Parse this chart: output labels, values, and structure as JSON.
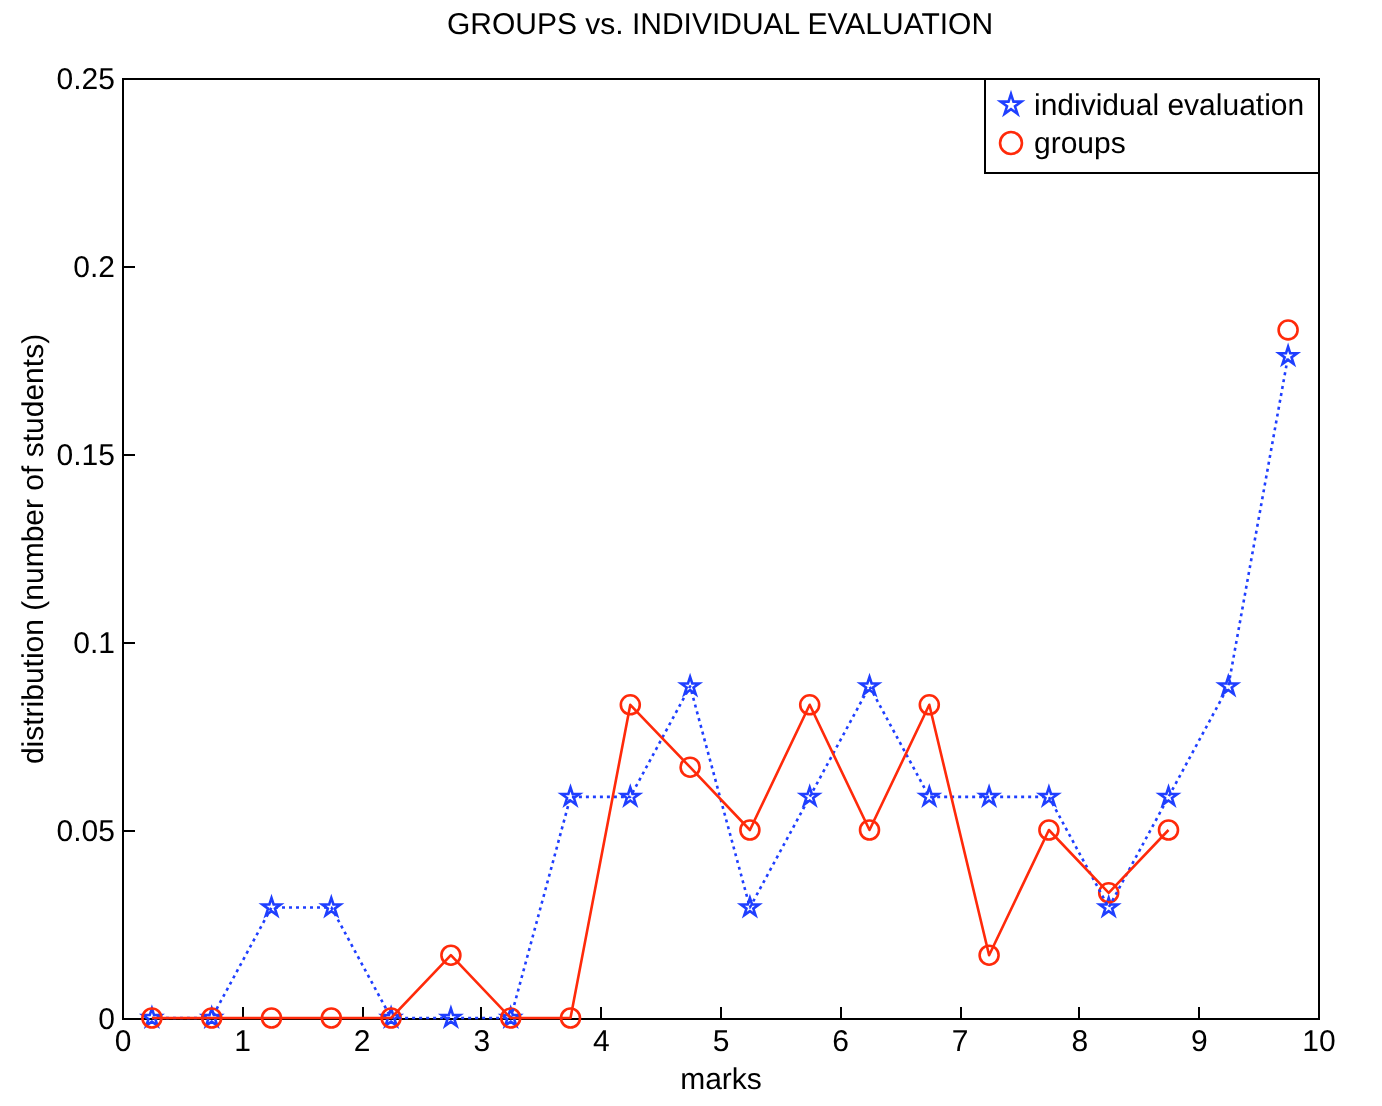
{
  "chart_data": {
    "type": "line",
    "title": "GROUPS vs. INDIVIDUAL EVALUATION",
    "xlabel": "marks",
    "ylabel": "distribution (number of students)",
    "x": [
      0.25,
      0.75,
      1.25,
      1.75,
      2.25,
      2.75,
      3.25,
      3.75,
      4.25,
      4.75,
      5.25,
      5.75,
      6.25,
      6.75,
      7.25,
      7.75,
      8.25,
      8.75,
      9.25,
      9.75
    ],
    "series": [
      {
        "name": "individual evaluation",
        "color": "#1f3fff",
        "marker": "star",
        "line_style": "dotted",
        "values": [
          0,
          0,
          0.0294,
          0.0294,
          0,
          0,
          0,
          0.0588,
          0.0588,
          0.0882,
          0.0294,
          0.0588,
          0.0882,
          0.0588,
          0.0588,
          0.0588,
          0.0294,
          0.0588,
          0.0882,
          0.176
        ]
      },
      {
        "name": "groups",
        "color": "#ff2a0a",
        "marker": "circle",
        "line_style": "solid",
        "values": [
          0,
          0,
          0,
          0,
          0,
          0.0167,
          0,
          0,
          0.0833,
          0.0667,
          0.05,
          0.0833,
          0.05,
          0.0833,
          0.0167,
          0.05,
          0.0333,
          0.05,
          null,
          0.183
        ]
      }
    ],
    "xlim": [
      0,
      10
    ],
    "xticks": [
      0,
      1,
      2,
      3,
      4,
      5,
      6,
      7,
      8,
      9,
      10
    ],
    "ylim": [
      0,
      0.25
    ],
    "yticks": [
      0,
      0.05,
      0.1,
      0.15,
      0.2,
      0.25
    ],
    "grid": false,
    "legend": "top right"
  }
}
